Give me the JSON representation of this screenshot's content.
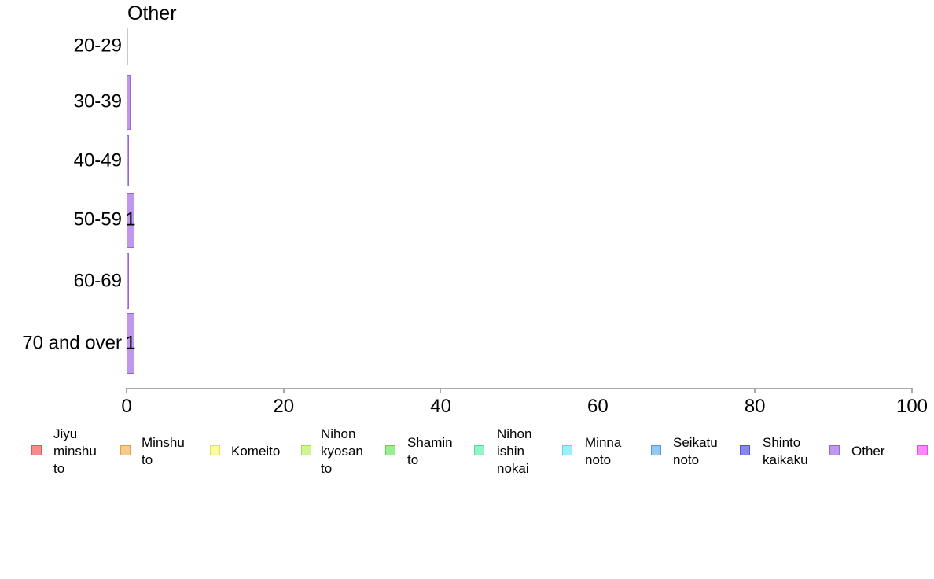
{
  "chart_data": {
    "type": "bar",
    "orientation": "horizontal",
    "title": "Other",
    "categories": [
      "20-29",
      "30-39",
      "40-49",
      "50-59",
      "60-69",
      "70 and over"
    ],
    "values": [
      0,
      0.5,
      0.3,
      1,
      0.3,
      1
    ],
    "bar_value_labels": [
      "",
      "",
      "",
      "1",
      "",
      "1"
    ],
    "xlabel": "",
    "ylabel": "",
    "xlim": [
      0,
      100
    ],
    "x_ticks": [
      "0",
      "20",
      "40",
      "60",
      "80",
      "100"
    ],
    "grid": false,
    "legend_position": "bottom",
    "series_color": {
      "fill": "#bf98ee",
      "border": "#9767d5"
    },
    "zero_bar_color": "#c8c8c8",
    "axis_color": "#a8a8a8",
    "text_color": "#000000",
    "legend": [
      {
        "label": "Jiyu minshu to",
        "lines": [
          "Jiyu",
          "minshu",
          "to"
        ],
        "fill": "#f58c8c",
        "border": "#de5a5a"
      },
      {
        "label": "Minshu to",
        "lines": [
          "Minshu",
          "to"
        ],
        "fill": "#f8cb8b",
        "border": "#e0a050"
      },
      {
        "label": "Komeito",
        "lines": [
          "Komeito"
        ],
        "fill": "#fbfb9d",
        "border": "#e3e35b"
      },
      {
        "label": "Nihon kyosan to",
        "lines": [
          "Nihon",
          "kyosan",
          "to"
        ],
        "fill": "#cdf693",
        "border": "#a1e051"
      },
      {
        "label": "Shamin to",
        "lines": [
          "Shamin",
          "to"
        ],
        "fill": "#98ee90",
        "border": "#55d455"
      },
      {
        "label": "Nihon ishin nokai",
        "lines": [
          "Nihon",
          "ishin",
          "nokai"
        ],
        "fill": "#94f2c5",
        "border": "#52db97"
      },
      {
        "label": "Minna noto",
        "lines": [
          "Minna",
          "noto"
        ],
        "fill": "#98f0fa",
        "border": "#55daec"
      },
      {
        "label": "Seikatu noto",
        "lines": [
          "Seikatu",
          "noto"
        ],
        "fill": "#94c8f4",
        "border": "#5895e0"
      },
      {
        "label": "Shinto kaikaku",
        "lines": [
          "Shinto",
          "kaikaku"
        ],
        "fill": "#8487ec",
        "border": "#5156dc"
      },
      {
        "label": "Other",
        "lines": [
          "Other"
        ],
        "fill": "#bf98ee",
        "border": "#9767d5"
      },
      {
        "label": "",
        "lines": [],
        "fill": "#fc86fc",
        "border": "#d558d5"
      }
    ]
  }
}
